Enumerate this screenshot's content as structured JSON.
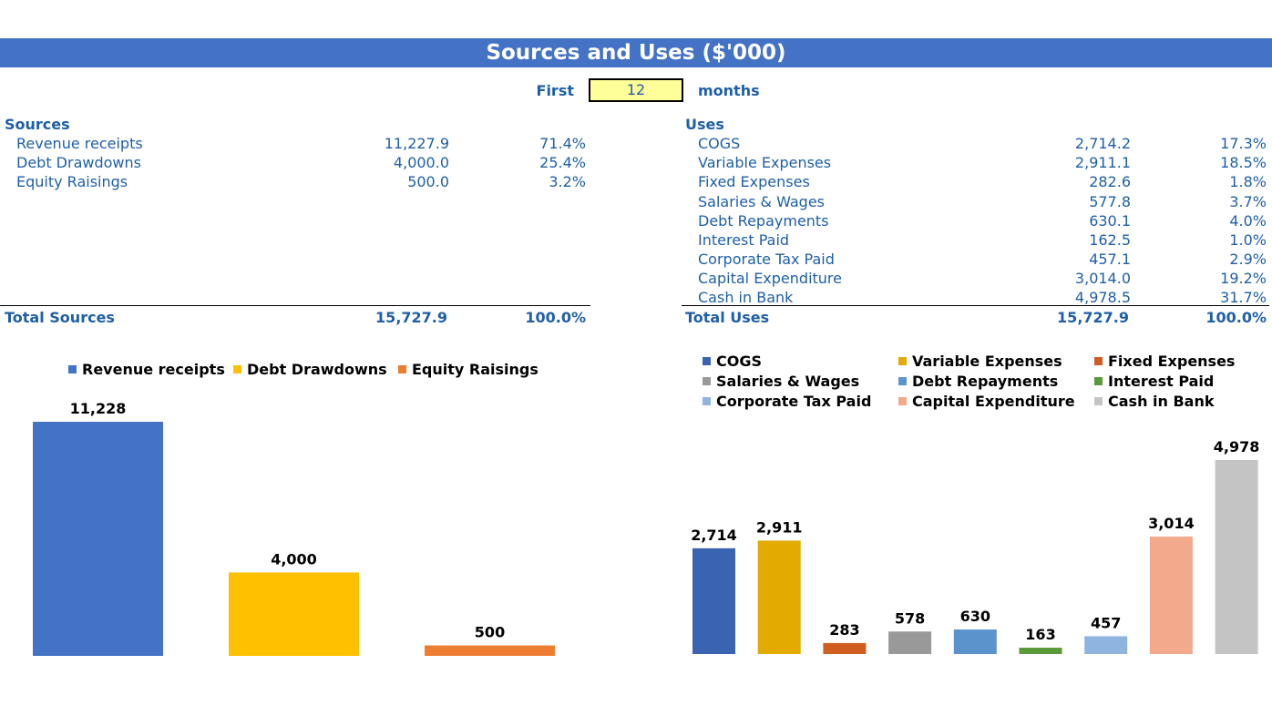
{
  "title": "Sources and Uses ($'000)",
  "period": {
    "prefix": "First",
    "value": "12",
    "suffix": "months"
  },
  "sources": {
    "heading": "Sources",
    "items": [
      {
        "label": "Revenue receipts",
        "value": "11,227.9",
        "pct": "71.4%"
      },
      {
        "label": "Debt Drawdowns",
        "value": "4,000.0",
        "pct": "25.4%"
      },
      {
        "label": "Equity Raisings",
        "value": "500.0",
        "pct": "3.2%"
      }
    ],
    "total": {
      "label": "Total Sources",
      "value": "15,727.9",
      "pct": "100.0%"
    }
  },
  "uses": {
    "heading": "Uses",
    "items": [
      {
        "label": "COGS",
        "value": "2,714.2",
        "pct": "17.3%"
      },
      {
        "label": "Variable Expenses",
        "value": "2,911.1",
        "pct": "18.5%"
      },
      {
        "label": "Fixed Expenses",
        "value": "282.6",
        "pct": "1.8%"
      },
      {
        "label": "Salaries & Wages",
        "value": "577.8",
        "pct": "3.7%"
      },
      {
        "label": "Debt Repayments",
        "value": "630.1",
        "pct": "4.0%"
      },
      {
        "label": "Interest Paid",
        "value": "162.5",
        "pct": "1.0%"
      },
      {
        "label": "Corporate Tax Paid",
        "value": "457.1",
        "pct": "2.9%"
      },
      {
        "label": "Capital Expenditure",
        "value": "3,014.0",
        "pct": "19.2%"
      },
      {
        "label": "Cash in Bank",
        "value": "4,978.5",
        "pct": "31.7%"
      }
    ],
    "total": {
      "label": "Total Uses",
      "value": "15,727.9",
      "pct": "100.0%"
    }
  },
  "chart_data": [
    {
      "type": "bar",
      "title": "",
      "categories": [
        "Revenue receipts",
        "Debt Drawdowns",
        "Equity Raisings"
      ],
      "values": [
        11228,
        4000,
        500
      ],
      "value_labels": [
        "11,228",
        "4,000",
        "500"
      ],
      "colors": [
        "#4472c4",
        "#ffc000",
        "#ed7d31"
      ],
      "legend": "top",
      "ylim": [
        0,
        11228
      ],
      "grid": false
    },
    {
      "type": "bar",
      "title": "",
      "categories": [
        "COGS",
        "Variable Expenses",
        "Fixed Expenses",
        "Salaries & Wages",
        "Debt Repayments",
        "Interest Paid",
        "Corporate Tax Paid",
        "Capital Expenditure",
        "Cash in Bank"
      ],
      "values": [
        2714,
        2911,
        283,
        578,
        630,
        163,
        457,
        3014,
        4978
      ],
      "value_labels": [
        "2,714",
        "2,911",
        "283",
        "578",
        "630",
        "163",
        "457",
        "3,014",
        "4,978"
      ],
      "colors": [
        "#3a64b2",
        "#e3ab00",
        "#cf5d20",
        "#999999",
        "#5b93cc",
        "#5a9a3a",
        "#8fb4e0",
        "#f2a98c",
        "#c4c4c4"
      ],
      "legend": "top",
      "ylim": [
        0,
        4978
      ],
      "grid": false
    }
  ]
}
